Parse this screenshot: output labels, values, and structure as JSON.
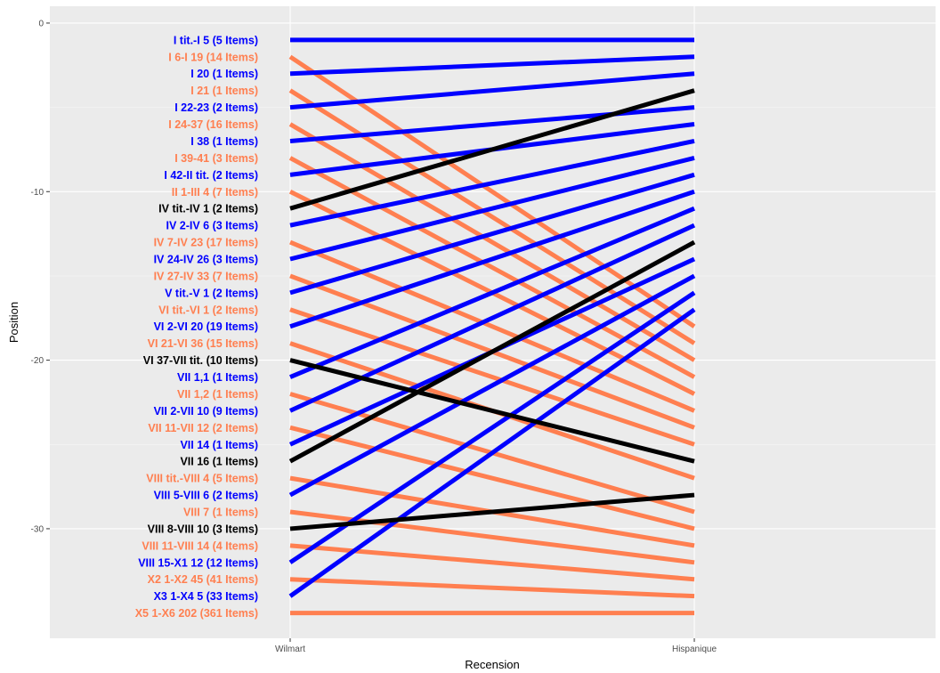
{
  "chart_data": {
    "type": "line",
    "title": "",
    "xlabel": "Recension",
    "ylabel": "Position",
    "x_categories": [
      "Wilmart",
      "Hispanique"
    ],
    "ylim": [
      -36.5,
      1.0
    ],
    "yticks": [
      0,
      -10,
      -20,
      -30
    ],
    "grid": true,
    "legend": "none",
    "colors": {
      "blue": "#0000ff",
      "orange": "#ff7f50",
      "black": "#000000",
      "panel": "#ebebeb",
      "grid_major": "#ffffff",
      "grid_minor": "#f5f5f5"
    },
    "series": [
      {
        "label": "I tit.-I 5 (5 Items)",
        "color": "blue",
        "values": [
          -1,
          -1
        ]
      },
      {
        "label": "I 6-I 19 (14 Items)",
        "color": "orange",
        "values": [
          -2,
          -18
        ]
      },
      {
        "label": "I 20 (1 Items)",
        "color": "blue",
        "values": [
          -3,
          -2
        ]
      },
      {
        "label": "I 21 (1 Items)",
        "color": "orange",
        "values": [
          -4,
          -19
        ]
      },
      {
        "label": "I 22-23 (2 Items)",
        "color": "blue",
        "values": [
          -5,
          -3
        ]
      },
      {
        "label": "I 24-37 (16 Items)",
        "color": "orange",
        "values": [
          -6,
          -20
        ]
      },
      {
        "label": "I 38 (1 Items)",
        "color": "blue",
        "values": [
          -7,
          -5
        ]
      },
      {
        "label": "I 39-41 (3 Items)",
        "color": "orange",
        "values": [
          -8,
          -21
        ]
      },
      {
        "label": "I 42-II tit. (2 Items)",
        "color": "blue",
        "values": [
          -9,
          -6
        ]
      },
      {
        "label": "II 1-III 4 (7 Items)",
        "color": "orange",
        "values": [
          -10,
          -22
        ]
      },
      {
        "label": "IV tit.-IV 1 (2 Items)",
        "color": "black",
        "values": [
          -11,
          -4
        ]
      },
      {
        "label": "IV 2-IV 6 (3 Items)",
        "color": "blue",
        "values": [
          -12,
          -7
        ]
      },
      {
        "label": "IV 7-IV 23 (17 Items)",
        "color": "orange",
        "values": [
          -13,
          -23
        ]
      },
      {
        "label": "IV 24-IV 26 (3 Items)",
        "color": "blue",
        "values": [
          -14,
          -8
        ]
      },
      {
        "label": "IV 27-IV 33 (7 Items)",
        "color": "orange",
        "values": [
          -15,
          -24
        ]
      },
      {
        "label": "V tit.-V 1 (2 Items)",
        "color": "blue",
        "values": [
          -16,
          -9
        ]
      },
      {
        "label": "VI tit.-VI 1 (2 Items)",
        "color": "orange",
        "values": [
          -17,
          -25
        ]
      },
      {
        "label": "VI 2-VI 20 (19 Items)",
        "color": "blue",
        "values": [
          -18,
          -10
        ]
      },
      {
        "label": "VI 21-VI 36 (15 Items)",
        "color": "orange",
        "values": [
          -19,
          -27
        ]
      },
      {
        "label": "VI 37-VII tit. (10 Items)",
        "color": "black",
        "values": [
          -20,
          -26
        ]
      },
      {
        "label": "VII 1,1 (1 Items)",
        "color": "blue",
        "values": [
          -21,
          -11
        ]
      },
      {
        "label": "VII 1,2 (1 Items)",
        "color": "orange",
        "values": [
          -22,
          -29
        ]
      },
      {
        "label": "VII 2-VII 10 (9 Items)",
        "color": "blue",
        "values": [
          -23,
          -12
        ]
      },
      {
        "label": "VII 11-VII 12 (2 Items)",
        "color": "orange",
        "values": [
          -24,
          -30
        ]
      },
      {
        "label": "VII 14 (1 Items)",
        "color": "blue",
        "values": [
          -25,
          -14
        ]
      },
      {
        "label": "VII 16 (1 Items)",
        "color": "black",
        "values": [
          -26,
          -13
        ]
      },
      {
        "label": "VIII tit.-VIII 4 (5 Items)",
        "color": "orange",
        "values": [
          -27,
          -31
        ]
      },
      {
        "label": "VIII 5-VIII 6 (2 Items)",
        "color": "blue",
        "values": [
          -28,
          -15
        ]
      },
      {
        "label": "VIII 7 (1 Items)",
        "color": "orange",
        "values": [
          -29,
          -32
        ]
      },
      {
        "label": "VIII 8-VIII 10 (3 Items)",
        "color": "black",
        "values": [
          -30,
          -28
        ]
      },
      {
        "label": "VIII 11-VIII 14 (4 Items)",
        "color": "orange",
        "values": [
          -31,
          -33
        ]
      },
      {
        "label": "VIII 15-X1 12 (12 Items)",
        "color": "blue",
        "values": [
          -32,
          -16
        ]
      },
      {
        "label": "X2 1-X2 45 (41 Items)",
        "color": "orange",
        "values": [
          -33,
          -34
        ]
      },
      {
        "label": "X3 1-X4 5 (33 Items)",
        "color": "blue",
        "values": [
          -34,
          -17
        ]
      },
      {
        "label": "X5 1-X6 202 (361 Items)",
        "color": "orange",
        "values": [
          -35,
          -35
        ]
      }
    ]
  }
}
